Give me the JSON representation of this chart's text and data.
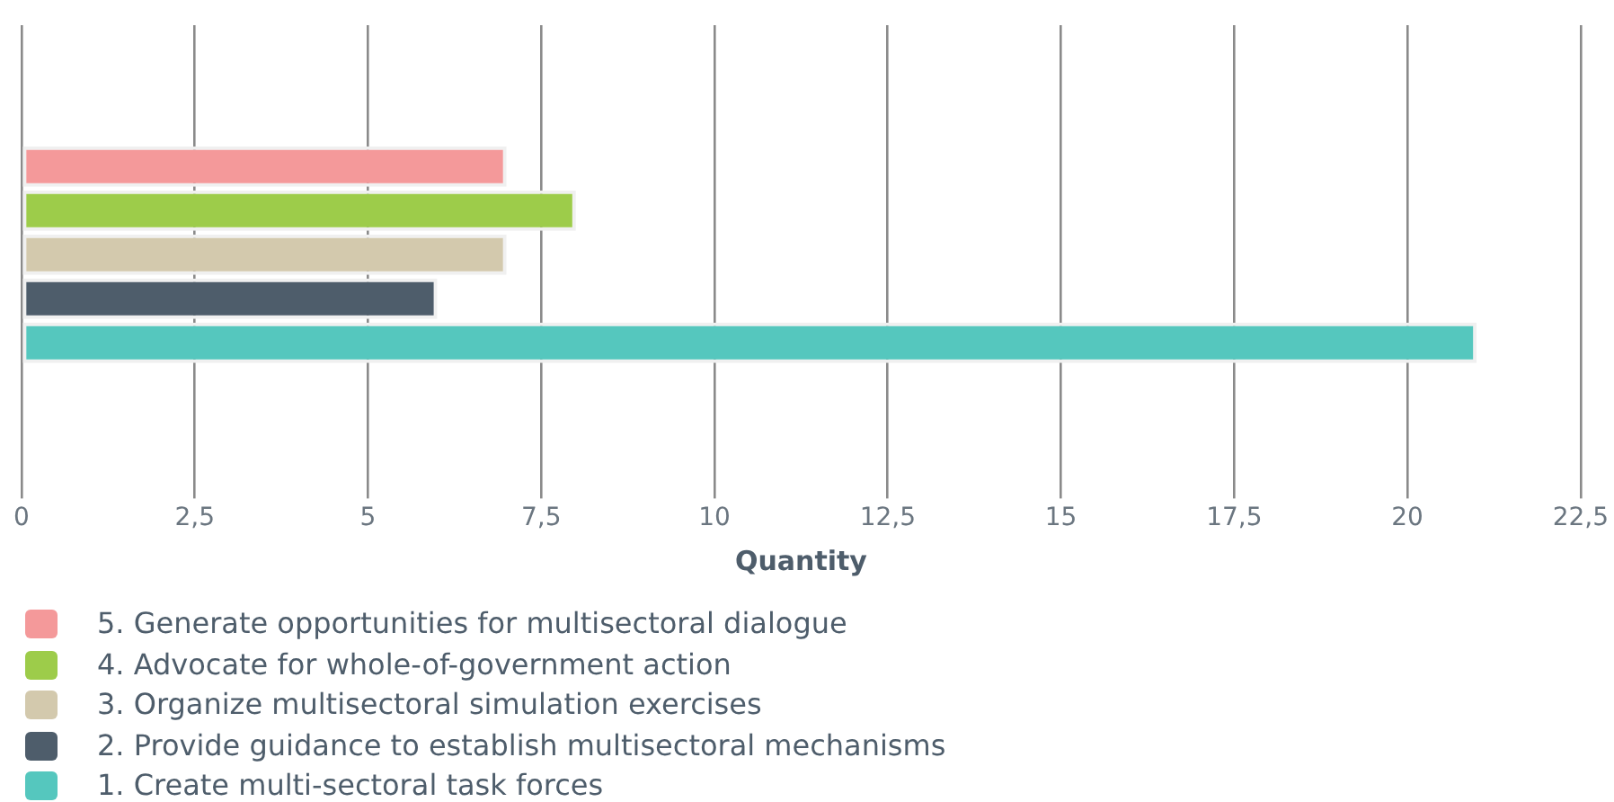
{
  "chart_data": {
    "type": "bar",
    "orientation": "horizontal",
    "categories": [
      null
    ],
    "xlabel": "Quantity",
    "series": [
      {
        "name": "5. Generate opportunities for multisectoral dialogue",
        "color": "#f4999a",
        "values": [
          7
        ]
      },
      {
        "name": "4. Advocate for whole-of-government action",
        "color": "#9dcc4a",
        "values": [
          8
        ]
      },
      {
        "name": "3. Organize multisectoral simulation exercises",
        "color": "#d3c9ad",
        "values": [
          7
        ]
      },
      {
        "name": "2. Provide guidance to establish multisectoral mechanisms",
        "color": "#4e5d6b",
        "values": [
          6
        ]
      },
      {
        "name": "1. Create multi-sectoral task forces",
        "color": "#55c7be",
        "values": [
          21
        ]
      }
    ],
    "xlim": [
      0,
      22.5
    ],
    "xticks": [
      0,
      {
        "value": 2.5,
        "label": "2,5"
      },
      5,
      {
        "value": 7.5,
        "label": "7,5"
      },
      10,
      {
        "value": 12.5,
        "label": "12,5"
      },
      15,
      {
        "value": 17.5,
        "label": "17,5"
      },
      20,
      {
        "value": 22.5,
        "label": "22,5"
      }
    ],
    "grid": "x",
    "legend": "bottom",
    "tick_labels": "x"
  }
}
